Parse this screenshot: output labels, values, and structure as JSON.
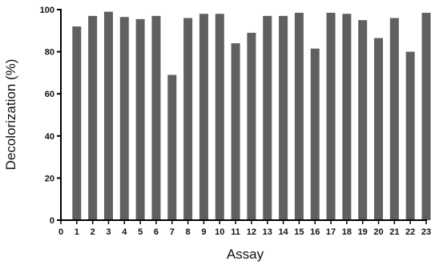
{
  "chart_data": {
    "type": "bar",
    "xlabel": "Assay",
    "ylabel": "Decolorization (%)",
    "ylim": [
      0,
      100
    ],
    "x_ticks": [
      "0",
      "1",
      "2",
      "3",
      "4",
      "5",
      "6",
      "7",
      "8",
      "9",
      "10",
      "11",
      "12",
      "13",
      "14",
      "15",
      "16",
      "17",
      "18",
      "19",
      "20",
      "21",
      "22",
      "23"
    ],
    "y_ticks": [
      "0",
      "20",
      "40",
      "60",
      "80",
      "100"
    ],
    "categories": [
      "1",
      "2",
      "3",
      "4",
      "5",
      "6",
      "7",
      "8",
      "9",
      "10",
      "11",
      "12",
      "13",
      "14",
      "15",
      "16",
      "17",
      "18",
      "19",
      "20",
      "21",
      "22",
      "23"
    ],
    "values": [
      92,
      97,
      99,
      96.5,
      95.5,
      97,
      69,
      96,
      98,
      98,
      84,
      89,
      97,
      97,
      98.5,
      81.5,
      98.5,
      98,
      95,
      86.5,
      96,
      80,
      98.5
    ],
    "bar_color": "#606060",
    "axis_color": "#000000"
  }
}
